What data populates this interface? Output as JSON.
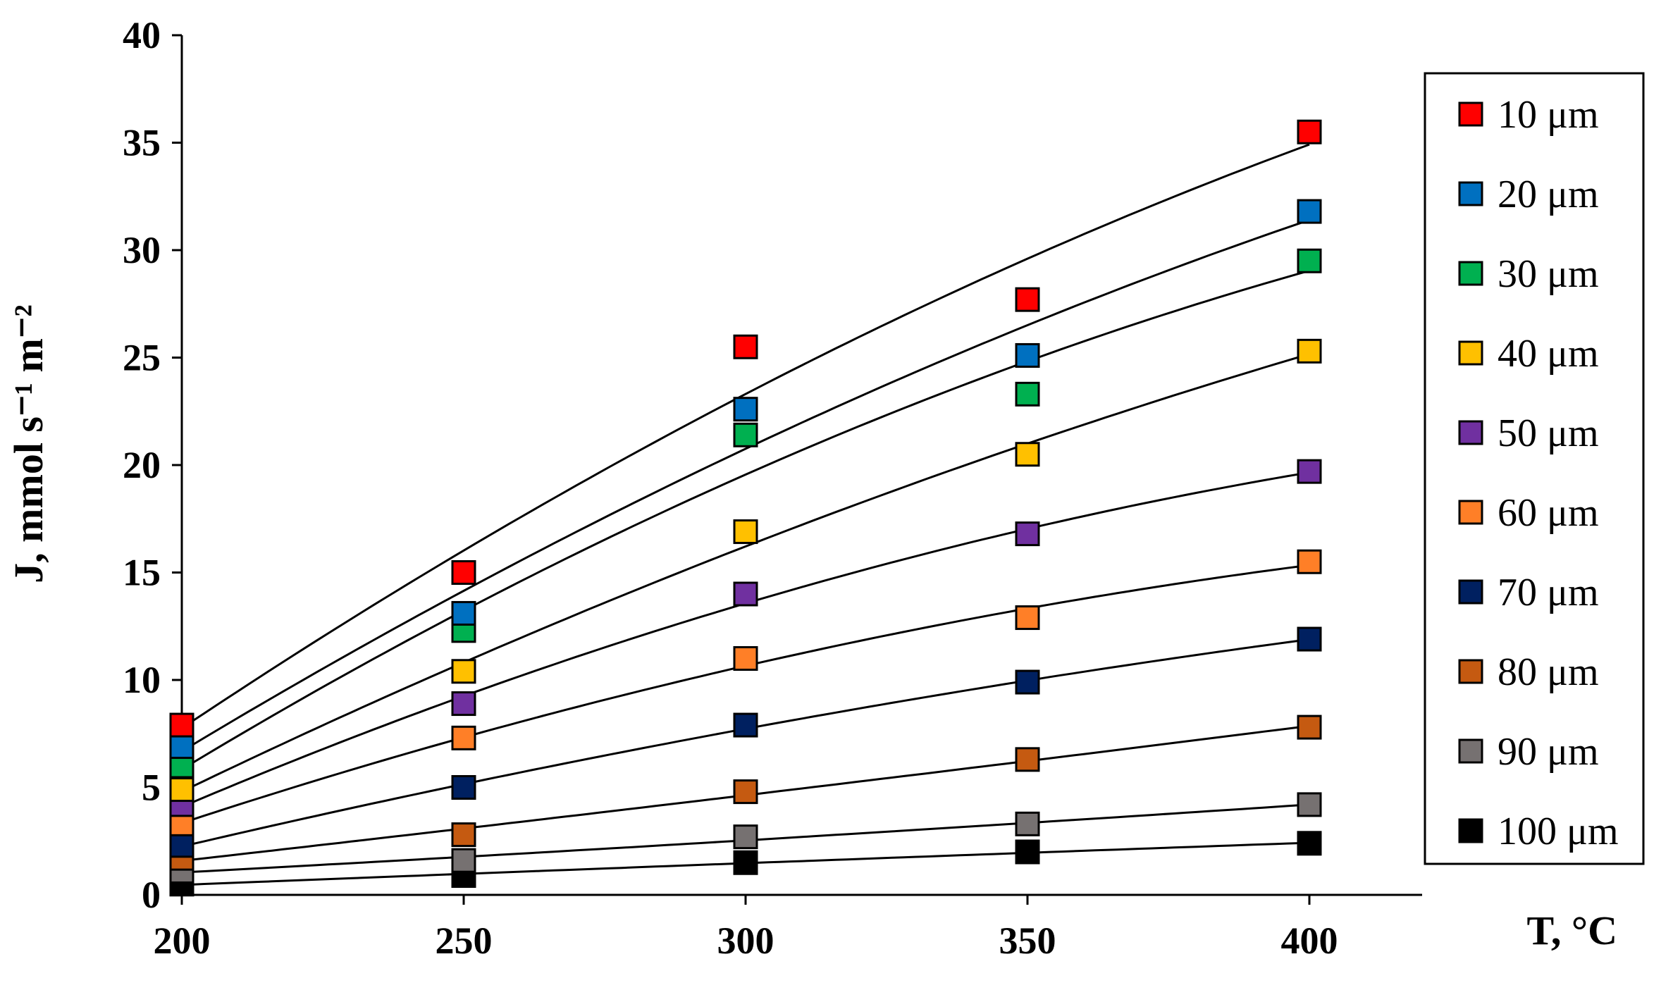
{
  "chart_data": {
    "type": "scatter",
    "xlabel": "T, °C",
    "ylabel": "J, mmol s⁻¹ m⁻²",
    "xlim": [
      200,
      400
    ],
    "ylim": [
      0,
      40
    ],
    "x_ticks": [
      "200",
      "250",
      "300",
      "350",
      "400"
    ],
    "y_ticks": [
      "0",
      "5",
      "10",
      "15",
      "20",
      "25",
      "30",
      "35",
      "40"
    ],
    "x": [
      200,
      250,
      300,
      350,
      400
    ],
    "grid": false,
    "legend_position": "right",
    "trendlines": true,
    "series": [
      {
        "name": "10 μm",
        "color": "#ff0000",
        "values": [
          7.9,
          15.0,
          25.5,
          27.7,
          35.5
        ]
      },
      {
        "name": "20 μm",
        "color": "#0070c0",
        "values": [
          6.9,
          13.1,
          22.6,
          25.1,
          31.8
        ]
      },
      {
        "name": "30 μm",
        "color": "#00b050",
        "values": [
          6.0,
          12.3,
          21.4,
          23.3,
          29.5
        ]
      },
      {
        "name": "40 μm",
        "color": "#ffc000",
        "values": [
          4.9,
          10.4,
          16.9,
          20.5,
          25.3
        ]
      },
      {
        "name": "50 μm",
        "color": "#7030a0",
        "values": [
          4.2,
          8.9,
          14.0,
          16.8,
          19.7
        ]
      },
      {
        "name": "60 μm",
        "color": "#ff7f27",
        "values": [
          3.3,
          7.3,
          11.0,
          12.9,
          15.5
        ]
      },
      {
        "name": "70 μm",
        "color": "#002060",
        "values": [
          2.3,
          5.0,
          7.9,
          9.9,
          11.9
        ]
      },
      {
        "name": "80 μm",
        "color": "#c55a11",
        "values": [
          1.7,
          2.8,
          4.8,
          6.3,
          7.8
        ]
      },
      {
        "name": "90 μm",
        "color": "#767171",
        "values": [
          1.1,
          1.6,
          2.7,
          3.3,
          4.2
        ]
      },
      {
        "name": "100 μm",
        "color": "#000000",
        "values": [
          0.5,
          0.9,
          1.5,
          2.0,
          2.4
        ]
      }
    ]
  }
}
